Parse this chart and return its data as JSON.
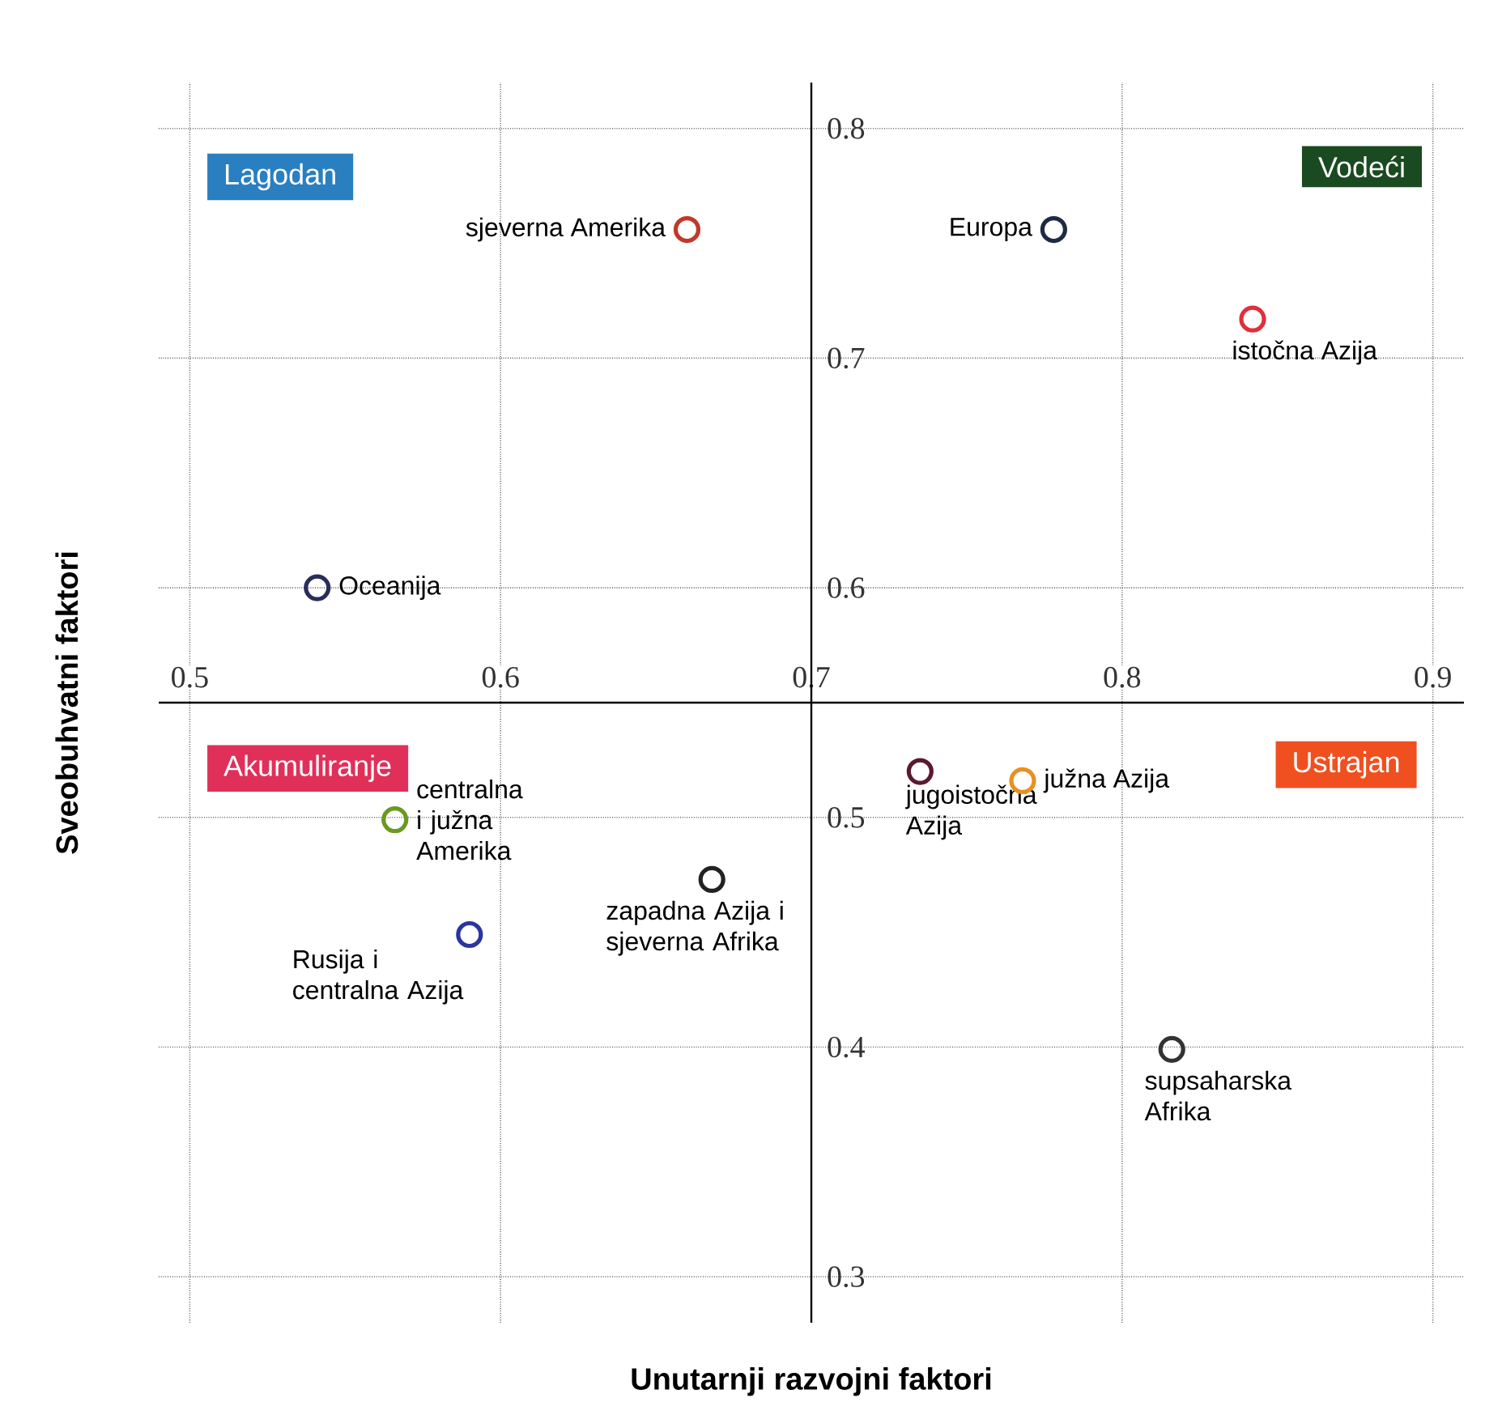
{
  "chart_data": {
    "type": "scatter",
    "xlabel": "Unutarnji razvojni faktori",
    "ylabel": "Sveobuhvatni faktori",
    "xlim": [
      0.49,
      0.91
    ],
    "ylim": [
      0.28,
      0.82
    ],
    "xticks": [
      0.5,
      0.6,
      0.7,
      0.8,
      0.9
    ],
    "yticks": [
      0.3,
      0.4,
      0.5,
      0.6,
      0.7,
      0.8
    ],
    "grid": true,
    "marker": "circle",
    "annotations": [
      "Lagodan",
      "Vodeći",
      "Akumuliranje",
      "Ustrajan"
    ],
    "series": [
      {
        "name": "sjeverna Amerika",
        "color": "#c0392b",
        "x": [
          0.66
        ],
        "values": [
          0.756
        ]
      },
      {
        "name": "Europa",
        "color": "#1f2a44",
        "x": [
          0.778
        ],
        "values": [
          0.756
        ]
      },
      {
        "name": "istočna Azija",
        "color": "#e0303a",
        "x": [
          0.842
        ],
        "values": [
          0.717
        ]
      },
      {
        "name": "Oceanija",
        "color": "#2a2d5a",
        "x": [
          0.541
        ],
        "values": [
          0.6
        ]
      },
      {
        "name": "centralna i južna Amerika",
        "color": "#6a9a20",
        "x": [
          0.566
        ],
        "values": [
          0.499
        ]
      },
      {
        "name": "Rusija i centralna Azija",
        "color": "#2a35a0",
        "x": [
          0.59
        ],
        "values": [
          0.449
        ]
      },
      {
        "name": "zapadna Azija i sjeverna Afrika",
        "color": "#222222",
        "x": [
          0.668
        ],
        "values": [
          0.473
        ]
      },
      {
        "name": "jugoistočna Azija",
        "color": "#5a1a30",
        "x": [
          0.735
        ],
        "values": [
          0.52
        ]
      },
      {
        "name": "južna Azija",
        "color": "#e89020",
        "x": [
          0.768
        ],
        "values": [
          0.516
        ]
      },
      {
        "name": "supsaharska Afrika",
        "color": "#333333",
        "x": [
          0.816
        ],
        "values": [
          0.399
        ]
      }
    ]
  }
}
